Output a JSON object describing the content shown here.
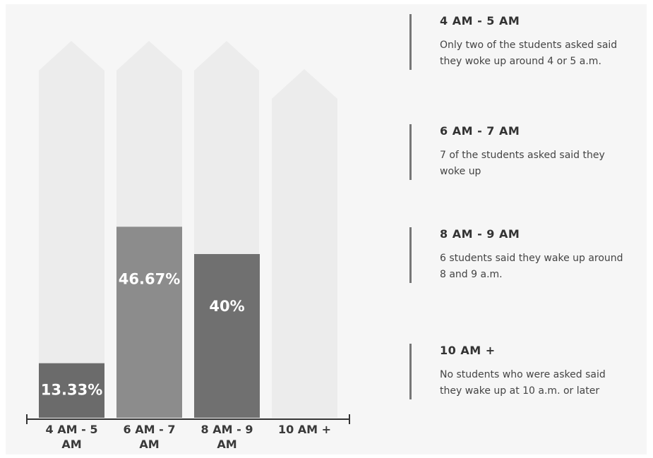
{
  "chart_data": {
    "type": "bar",
    "categories": [
      "4 AM - 5 AM",
      "6 AM - 7 AM",
      "8 AM - 9 AM",
      "10 AM +"
    ],
    "values": [
      13.33,
      46.67,
      40,
      0
    ],
    "value_labels": [
      "13.33%",
      "46.67%",
      "40%",
      null
    ],
    "colors": [
      "#6b6b6b",
      "#8c8c8c",
      "#707070",
      "#8c8c8c"
    ],
    "annotations": [
      {
        "title": "4 AM - 5 AM",
        "text": "Only two of the students asked said they woke up around 4 or 5 a.m."
      },
      {
        "title": "6 AM - 7 AM",
        "text": "7 of the students asked said they woke up"
      },
      {
        "title": "8 AM - 9 AM",
        "text": "6 students said they wake up around 8 and 9 a.m."
      },
      {
        "title": "10 AM +",
        "text": "No students who were asked said they wake up at 10 a.m. or later"
      }
    ]
  }
}
